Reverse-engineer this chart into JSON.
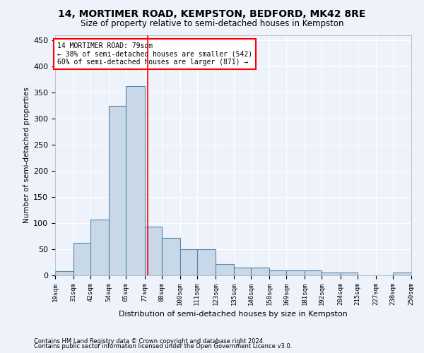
{
  "title": "14, MORTIMER ROAD, KEMPSTON, BEDFORD, MK42 8RE",
  "subtitle": "Size of property relative to semi-detached houses in Kempston",
  "xlabel": "Distribution of semi-detached houses by size in Kempston",
  "ylabel": "Number of semi-detached properties",
  "annotation_title": "14 MORTIMER ROAD: 79sqm",
  "annotation_line1": "← 38% of semi-detached houses are smaller (542)",
  "annotation_line2": "60% of semi-detached houses are larger (871) →",
  "footnote1": "Contains HM Land Registry data © Crown copyright and database right 2024.",
  "footnote2": "Contains public sector information licensed under the Open Government Licence v3.0.",
  "bar_edges": [
    19,
    31,
    42,
    54,
    65,
    77,
    88,
    100,
    111,
    123,
    135,
    146,
    158,
    169,
    181,
    192,
    204,
    215,
    227,
    238,
    250
  ],
  "bar_heights": [
    8,
    62,
    107,
    325,
    362,
    93,
    72,
    50,
    50,
    22,
    15,
    15,
    10,
    10,
    10,
    5,
    5,
    0,
    0,
    5
  ],
  "bar_color": "#c8d8e8",
  "bar_edge_color": "#5588aa",
  "vline_x": 79,
  "vline_color": "red",
  "ylim": [
    0,
    460
  ],
  "yticks": [
    0,
    50,
    100,
    150,
    200,
    250,
    300,
    350,
    400,
    450
  ],
  "background_color": "#eef2fb",
  "grid_color": "#ffffff",
  "annotation_box_color": "white",
  "annotation_box_edge": "red"
}
